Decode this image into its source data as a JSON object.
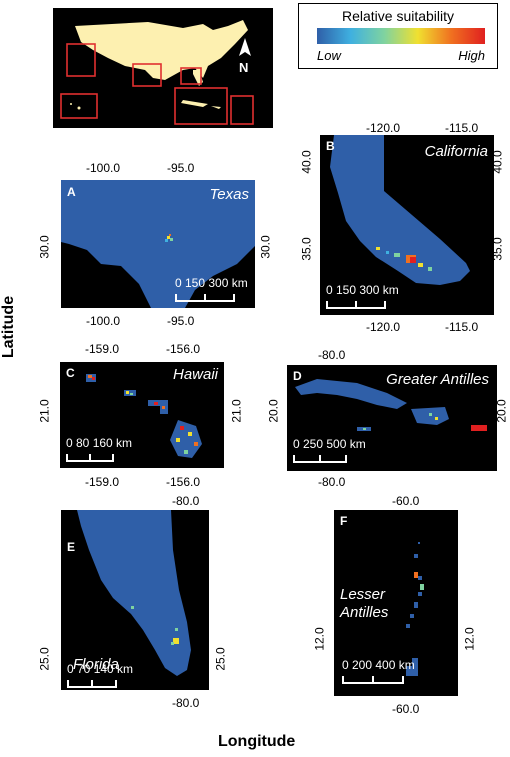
{
  "legend": {
    "title": "Relative suitability",
    "low": "Low",
    "high": "High",
    "gradient": [
      "#2f5fa8",
      "#3fb0e0",
      "#7fd3a0",
      "#f0e030",
      "#f07020",
      "#e02020"
    ]
  },
  "inset": {
    "north_label": "N"
  },
  "panels": {
    "A": {
      "letter": "A",
      "name": "Texas",
      "top_ticks": [
        "-100.0",
        "-95.0"
      ],
      "bottom_ticks": [
        "-100.0",
        "-95.0"
      ],
      "left_ticks": [
        "30.0"
      ],
      "right_ticks": [
        "30.0"
      ],
      "scale": "0 150 300 km"
    },
    "B": {
      "letter": "B",
      "name": "California",
      "top_ticks": [
        "-120.0",
        "-115.0"
      ],
      "bottom_ticks": [
        "-120.0",
        "-115.0"
      ],
      "left_ticks": [
        "40.0",
        "35.0"
      ],
      "right_ticks": [
        "40.0",
        "35.0"
      ],
      "scale": "0 150 300 km"
    },
    "C": {
      "letter": "C",
      "name": "Hawaii",
      "top_ticks": [
        "-159.0",
        "-156.0"
      ],
      "bottom_ticks": [
        "-159.0",
        "-156.0"
      ],
      "left_ticks": [
        "21.0"
      ],
      "right_ticks": [
        "21.0"
      ],
      "scale": "0 80 160 km"
    },
    "D": {
      "letter": "D",
      "name": "Greater Antilles",
      "top_ticks": [
        "-80.0"
      ],
      "bottom_ticks": [
        "-80.0"
      ],
      "left_ticks": [
        "20.0"
      ],
      "right_ticks": [
        "20.0"
      ],
      "scale": "0 250 500 km"
    },
    "E": {
      "letter": "E",
      "name": "Florida",
      "top_ticks": [
        "-80.0"
      ],
      "bottom_ticks": [
        "-80.0"
      ],
      "left_ticks": [
        "25.0"
      ],
      "right_ticks": [
        "25.0"
      ],
      "scale": "0 70 140 km"
    },
    "F": {
      "letter": "F",
      "name": "Lesser\nAntilles",
      "top_ticks": [
        "-60.0"
      ],
      "bottom_ticks": [
        "-60.0"
      ],
      "left_ticks": [
        "12.0"
      ],
      "right_ticks": [
        "12.0"
      ],
      "scale": "0 200 400 km"
    }
  },
  "axes": {
    "x_title": "Longitude",
    "y_title": "Latitude"
  },
  "colors": {
    "land": "#2f5fa8",
    "background": "#000000",
    "inset_land": "#fdf0b0",
    "highlight_box": "#e03030"
  }
}
